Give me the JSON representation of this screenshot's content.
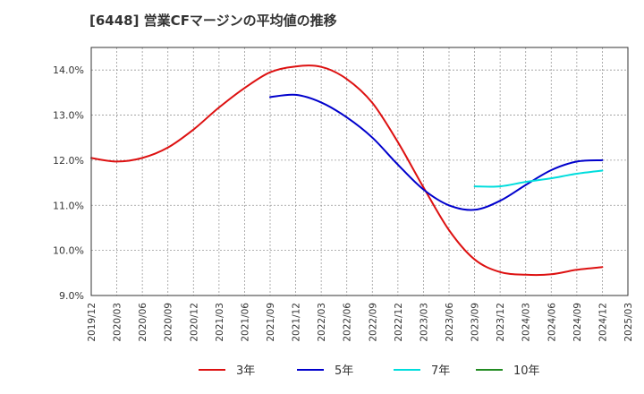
{
  "chart_data": {
    "type": "line",
    "title": "[6448]  営業CFマージンの平均値の推移",
    "xlabel": "",
    "ylabel": "",
    "x": [
      "2019/12",
      "2020/03",
      "2020/06",
      "2020/09",
      "2020/12",
      "2021/03",
      "2021/06",
      "2021/09",
      "2021/12",
      "2022/03",
      "2022/06",
      "2022/09",
      "2022/12",
      "2023/03",
      "2023/06",
      "2023/09",
      "2023/12",
      "2024/03",
      "2024/06",
      "2024/09",
      "2024/12",
      "2025/03"
    ],
    "ylim": [
      9.0,
      14.5
    ],
    "yticks": [
      9.0,
      10.0,
      11.0,
      12.0,
      13.0,
      14.0
    ],
    "ytick_labels": [
      "9.0%",
      "10.0%",
      "11.0%",
      "12.0%",
      "13.0%",
      "14.0%"
    ],
    "grid": true,
    "legend_position": "bottom",
    "series": [
      {
        "name": "3年",
        "color": "#dd1111",
        "values": [
          12.05,
          11.97,
          12.05,
          12.28,
          12.68,
          13.17,
          13.6,
          13.95,
          14.08,
          14.07,
          13.8,
          13.27,
          12.4,
          11.4,
          10.45,
          9.8,
          9.52,
          9.46,
          9.47,
          9.57,
          9.63,
          null
        ]
      },
      {
        "name": "5年",
        "color": "#0000cc",
        "values": [
          null,
          null,
          null,
          null,
          null,
          null,
          null,
          13.4,
          13.45,
          13.28,
          12.95,
          12.5,
          11.9,
          11.35,
          11.0,
          10.9,
          11.1,
          11.45,
          11.78,
          11.97,
          12.0,
          null
        ]
      },
      {
        "name": "7年",
        "color": "#00dddd",
        "values": [
          null,
          null,
          null,
          null,
          null,
          null,
          null,
          null,
          null,
          null,
          null,
          null,
          null,
          null,
          null,
          11.42,
          11.42,
          11.52,
          11.6,
          11.7,
          11.77,
          null
        ]
      },
      {
        "name": "10年",
        "color": "#228b22",
        "values": [
          null,
          null,
          null,
          null,
          null,
          null,
          null,
          null,
          null,
          null,
          null,
          null,
          null,
          null,
          null,
          null,
          null,
          null,
          null,
          null,
          null,
          null
        ]
      }
    ]
  }
}
